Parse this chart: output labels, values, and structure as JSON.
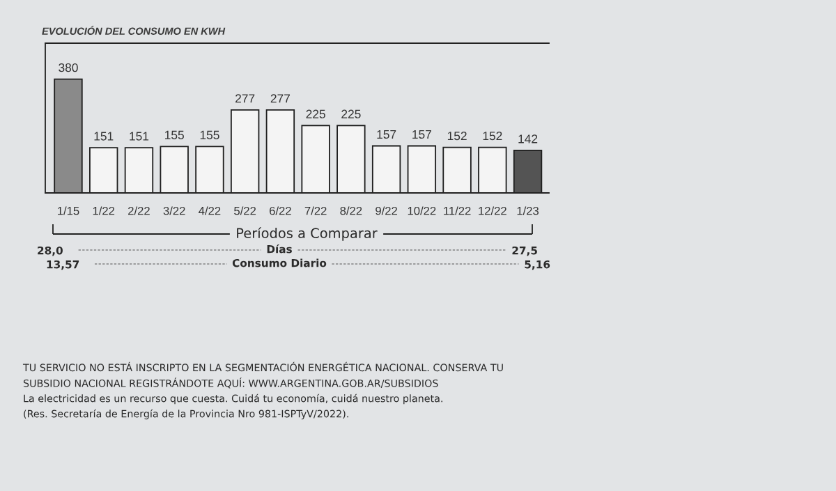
{
  "chart_data": {
    "type": "bar",
    "title": "EVOLUCIÓN DEL CONSUMO EN KWH",
    "categories": [
      "1/15",
      "1/22",
      "2/22",
      "3/22",
      "4/22",
      "5/22",
      "6/22",
      "7/22",
      "8/22",
      "9/22",
      "10/22",
      "11/22",
      "12/22",
      "1/23"
    ],
    "values": [
      380,
      151,
      151,
      155,
      155,
      277,
      277,
      225,
      225,
      157,
      157,
      152,
      152,
      142
    ],
    "colors": [
      "#8a8a8a",
      "#f4f4f4",
      "#f4f4f4",
      "#f4f4f4",
      "#f4f4f4",
      "#f4f4f4",
      "#f4f4f4",
      "#f4f4f4",
      "#f4f4f4",
      "#f4f4f4",
      "#f4f4f4",
      "#f4f4f4",
      "#f4f4f4",
      "#545454"
    ],
    "ylim": [
      0,
      500
    ],
    "tick_labels": "x",
    "data_labels": true,
    "annotations": [
      "Períodos a Comparar",
      "28,0",
      "Días",
      "27,5",
      "13,57",
      "Consumo Diario",
      "5,16",
      "TU SERVICIO NO ESTÁ INSCRIPTO EN LA SEGMENTACIÓN ENERGÉTICA NACIONAL. CONSERVA TU",
      "SUBSIDIO NACIONAL REGISTRÁNDOTE AQUÍ: WWW.ARGENTINA.GOB.AR/SUBSIDIOS",
      "La electricidad es un recurso que cuesta. Cuidá tu economía, cuidá nuestro planeta.",
      "(Res. Secretaría de Energía de la Provincia Nro 981-ISPTyV/2022)."
    ]
  }
}
